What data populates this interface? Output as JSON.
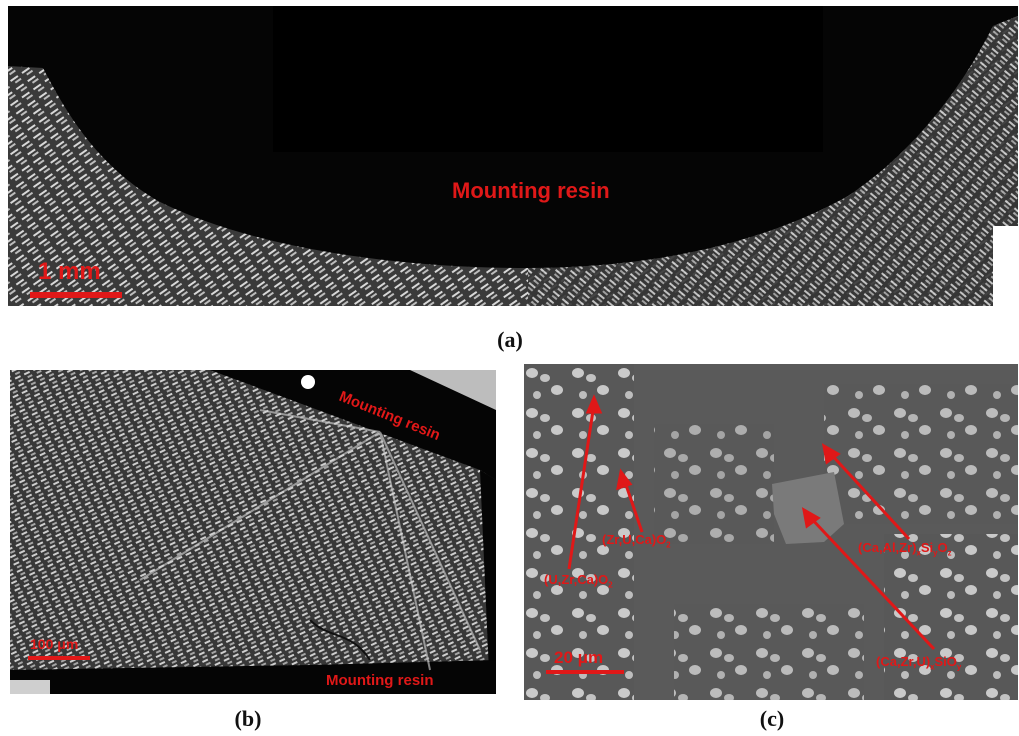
{
  "panel_a": {
    "caption": "(a)",
    "center_label": "Mounting resin",
    "scale_bar_label": "1 mm"
  },
  "panel_b": {
    "caption": "(b)",
    "resin_label_top": "Mounting resin",
    "resin_label_bottom": "Mounting resin",
    "scale_bar_label": "100 μm"
  },
  "panel_c": {
    "caption": "(c)",
    "scale_bar_label": "20 μm",
    "phase_labels": [
      {
        "base": "(Zr,U,Ca)O",
        "sub": "2"
      },
      {
        "base": "(U,Zr,Ca)O",
        "sub": "2"
      },
      {
        "base": "(Ca,Al,Zr)",
        "sub": "x",
        "mid": "Si",
        "sub2": "y",
        "tail": "O",
        "sub3": "z"
      },
      {
        "base": "(Ca,Zr,U)",
        "sub": "x",
        "mid": "SiO",
        "sub2": "y"
      }
    ]
  },
  "colors": {
    "label_red": "#e01818",
    "resin_black": "#050505",
    "matrix_gray": "#5a5a5a"
  }
}
